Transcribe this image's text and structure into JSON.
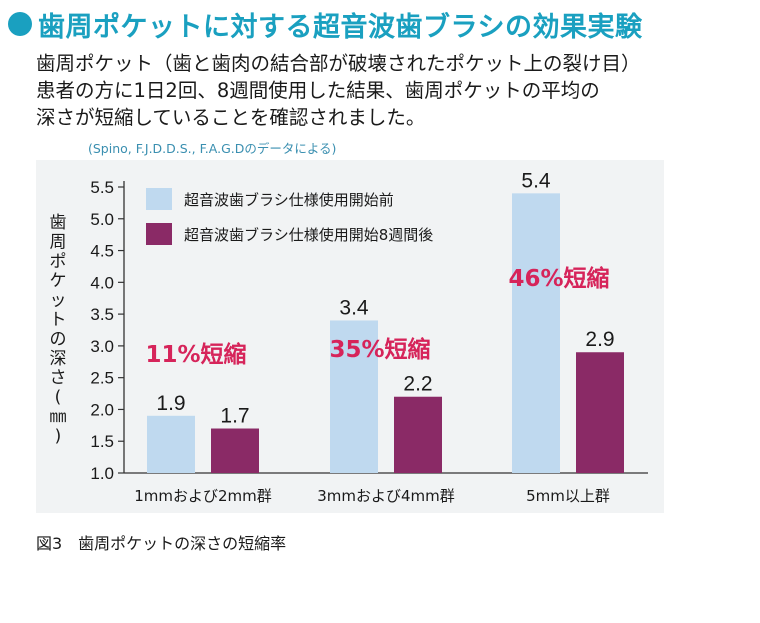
{
  "heading": {
    "title": "歯周ポケットに対する超音波歯ブラシの効果実験",
    "accent_color": "#1aa0c0"
  },
  "intro": {
    "lines": [
      "歯周ポケット（歯と歯肉の結合部が破壊されたポケット上の裂け目）",
      "患者の方に1日2回、8週間使用した結果、歯周ポケットの平均の",
      "深さが短縮していることを確認されました。"
    ]
  },
  "source_note": "(Spino, F.J.D.D.S., F.A.G.Dのデータによる)",
  "caption": "図3　歯周ポケットの深さの短縮率",
  "chart_data": {
    "type": "bar",
    "categories": [
      "1mmおよび2mm群",
      "3mmおよび4mm群",
      "5mm以上群"
    ],
    "series": [
      {
        "name": "超音波歯ブラシ仕様使用開始前",
        "values": [
          1.9,
          3.4,
          5.4
        ],
        "color": "#bfd9ef"
      },
      {
        "name": "超音波歯ブラシ仕様使用開始8週間後",
        "values": [
          1.7,
          2.2,
          2.9
        ],
        "color": "#8a2a66"
      }
    ],
    "ylabel": "歯周ポケットの深さ(㎜)",
    "ylim": [
      1.0,
      5.5
    ],
    "yticks": [
      "1.0",
      "1.5",
      "2.0",
      "2.5",
      "3.0",
      "3.5",
      "4.0",
      "4.5",
      "5.0",
      "5.5"
    ],
    "annotations": [
      "11%短縮",
      "35%短縮",
      "46%短縮"
    ],
    "annotation_color": "#d6245a",
    "grid": false,
    "legend": "top-left"
  }
}
